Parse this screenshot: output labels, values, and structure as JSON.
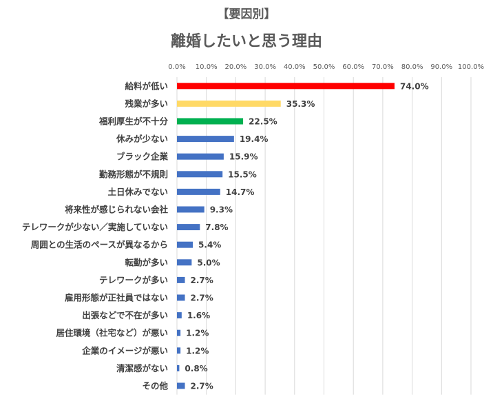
{
  "chart_data": {
    "type": "bar",
    "orientation": "horizontal",
    "title": "【要因別】",
    "subtitle": "離婚したいと思う理由",
    "xlim": [
      0,
      100
    ],
    "ticks": [
      "0.0%",
      "10.0%",
      "20.0%",
      "30.0%",
      "40.0%",
      "50.0%",
      "60.0%",
      "70.0%",
      "80.0%",
      "90.0%",
      "100.0%"
    ],
    "tick_values": [
      0,
      10,
      20,
      30,
      40,
      50,
      60,
      70,
      80,
      90,
      100
    ],
    "grid": true,
    "categories": [
      "給料が低い",
      "残業が多い",
      "福利厚生が不十分",
      "休みが少ない",
      "ブラック企業",
      "勤務形態が不規則",
      "土日休みでない",
      "将来性が感じられない会社",
      "テレワークが少ない／実施していない",
      "周囲との生活のペースが異なるから",
      "転勤が多い",
      "テレワークが多い",
      "雇用形態が正社員ではない",
      "出張などで不在が多い",
      "居住環境（社宅など）が悪い",
      "企業のイメージが悪い",
      "清潔感がない",
      "その他"
    ],
    "values": [
      74.0,
      35.3,
      22.5,
      19.4,
      15.9,
      15.5,
      14.7,
      9.3,
      7.8,
      5.4,
      5.0,
      2.7,
      2.7,
      1.6,
      1.2,
      1.2,
      0.8,
      2.7
    ],
    "value_labels": [
      "74.0%",
      "35.3%",
      "22.5%",
      "19.4%",
      "15.9%",
      "15.5%",
      "14.7%",
      "9.3%",
      "7.8%",
      "5.4%",
      "5.0%",
      "2.7%",
      "2.7%",
      "1.6%",
      "1.2%",
      "1.2%",
      "0.8%",
      "2.7%"
    ],
    "colors": [
      "#ff0000",
      "#ffd966",
      "#00b050",
      "#4472c4",
      "#4472c4",
      "#4472c4",
      "#4472c4",
      "#4472c4",
      "#4472c4",
      "#4472c4",
      "#4472c4",
      "#4472c4",
      "#4472c4",
      "#4472c4",
      "#4472c4",
      "#4472c4",
      "#4472c4",
      "#4472c4"
    ]
  }
}
